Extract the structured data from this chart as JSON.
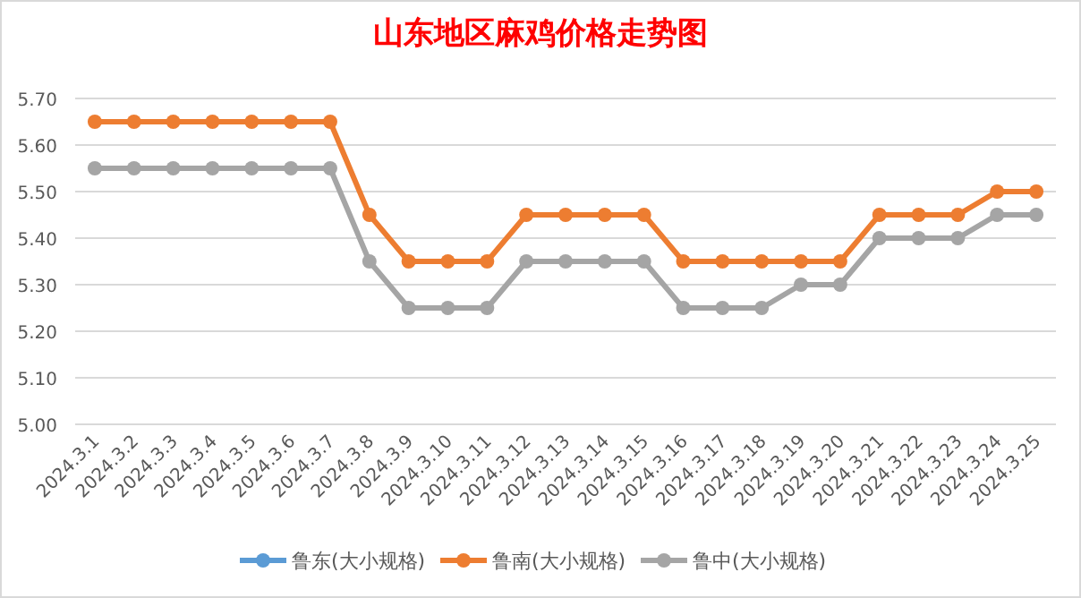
{
  "chart_data": {
    "type": "line",
    "title": "山东地区麻鸡价格走势图",
    "categories": [
      "2024.3.1",
      "2024.3.2",
      "2024.3.3",
      "2024.3.4",
      "2024.3.5",
      "2024.3.6",
      "2024.3.7",
      "2024.3.8",
      "2024.3.9",
      "2024.3.10",
      "2024.3.11",
      "2024.3.12",
      "2024.3.13",
      "2024.3.14",
      "2024.3.15",
      "2024.3.16",
      "2024.3.17",
      "2024.3.18",
      "2024.3.19",
      "2024.3.20",
      "2024.3.21",
      "2024.3.22",
      "2024.3.23",
      "2024.3.24",
      "2024.3.25"
    ],
    "series": [
      {
        "name": "鲁东(大小规格)",
        "color": "#5b9bd5",
        "values": [
          null,
          null,
          null,
          null,
          null,
          null,
          null,
          null,
          null,
          null,
          null,
          null,
          null,
          null,
          null,
          null,
          null,
          null,
          null,
          null,
          null,
          null,
          null,
          null,
          null
        ]
      },
      {
        "name": "鲁南(大小规格)",
        "color": "#ed7d31",
        "values": [
          5.65,
          5.65,
          5.65,
          5.65,
          5.65,
          5.65,
          5.65,
          5.45,
          5.35,
          5.35,
          5.35,
          5.45,
          5.45,
          5.45,
          5.45,
          5.35,
          5.35,
          5.35,
          5.35,
          5.35,
          5.45,
          5.45,
          5.45,
          5.5,
          5.5
        ]
      },
      {
        "name": "鲁中(大小规格)",
        "color": "#a5a5a5",
        "values": [
          5.55,
          5.55,
          5.55,
          5.55,
          5.55,
          5.55,
          5.55,
          5.35,
          5.25,
          5.25,
          5.25,
          5.35,
          5.35,
          5.35,
          5.35,
          5.25,
          5.25,
          5.25,
          5.3,
          5.3,
          5.4,
          5.4,
          5.4,
          5.45,
          5.45
        ]
      }
    ],
    "ylim": [
      5.0,
      5.7
    ],
    "yticks": [
      {
        "value": 5.0,
        "label": "5.00"
      },
      {
        "value": 5.1,
        "label": "5.10"
      },
      {
        "value": 5.2,
        "label": "5.20"
      },
      {
        "value": 5.3,
        "label": "5.30"
      },
      {
        "value": 5.4,
        "label": "5.40"
      },
      {
        "value": 5.5,
        "label": "5.50"
      },
      {
        "value": 5.6,
        "label": "5.60"
      },
      {
        "value": 5.7,
        "label": "5.70"
      }
    ],
    "grid": "y",
    "legend": "bottom",
    "marker": "circle",
    "line_style": "solid"
  }
}
